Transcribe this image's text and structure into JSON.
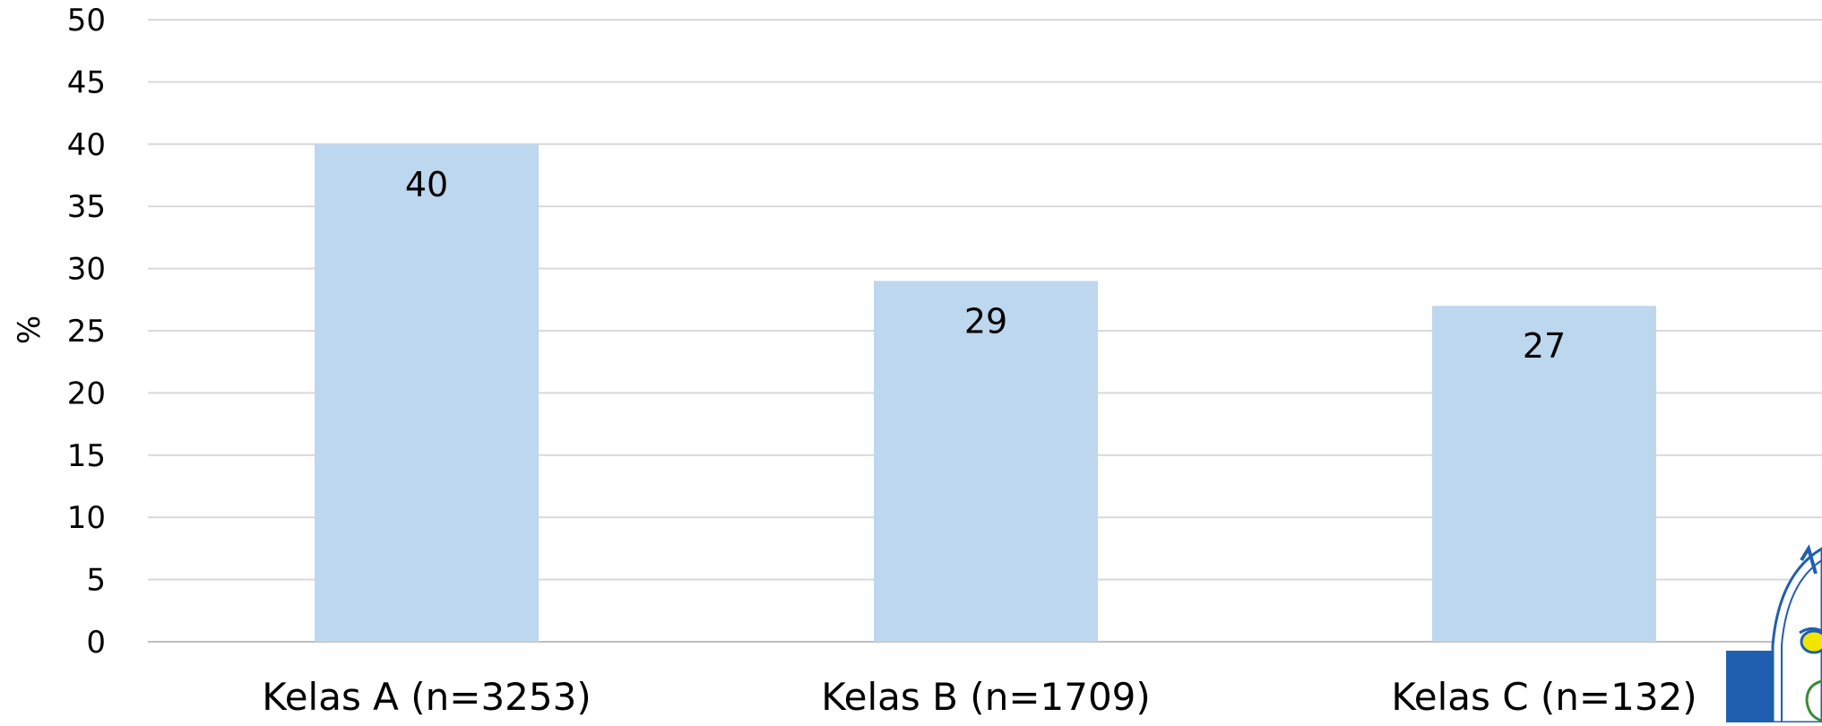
{
  "chart_data": {
    "type": "bar",
    "categories": [
      "Kelas A (n=3253)",
      "Kelas B (n=1709)",
      "Kelas C (n=132)"
    ],
    "values": [
      40,
      29,
      27
    ],
    "data_labels": [
      "40",
      "29",
      "27"
    ],
    "title": "",
    "xlabel": "",
    "ylabel": "%",
    "ylim": [
      0,
      50
    ],
    "yticks": [
      "0",
      "5",
      "10",
      "15",
      "20",
      "25",
      "30",
      "35",
      "40",
      "45",
      "50"
    ],
    "grid": true,
    "legend": "none",
    "colors": {
      "bar": "#bdd7ee",
      "grid": "#d9d9d9",
      "axis": "#bfbfbf",
      "logo_blue": "#1f5fb0",
      "logo_yellow": "#f2e600"
    }
  },
  "logo": {
    "icon": "emblem-logo-icon"
  }
}
